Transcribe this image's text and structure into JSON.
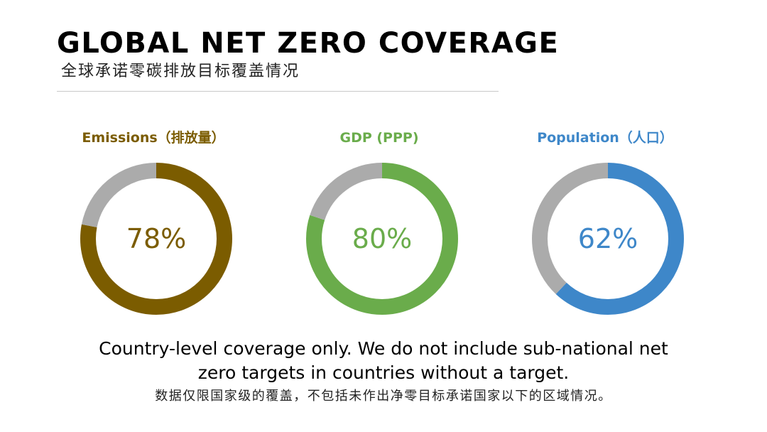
{
  "header": {
    "title": "GLOBAL NET ZERO COVERAGE",
    "subtitle": "全球承诺零碳排放目标覆盖情况"
  },
  "colors": {
    "remainder": "#ababab",
    "emissions": "#7b5c00",
    "gdp": "#6aac4b",
    "population": "#3e87c9"
  },
  "chart_data": [
    {
      "type": "pie",
      "title": "Emissions（排放量）",
      "value_label": "78%",
      "values": [
        78,
        22
      ],
      "colors": [
        "#7b5c00",
        "#ababab"
      ]
    },
    {
      "type": "pie",
      "title": "GDP (PPP)",
      "value_label": "80%",
      "values": [
        80,
        20
      ],
      "colors": [
        "#6aac4b",
        "#ababab"
      ]
    },
    {
      "type": "pie",
      "title": "Population（人口）",
      "value_label": "62%",
      "values": [
        62,
        38
      ],
      "colors": [
        "#3e87c9",
        "#ababab"
      ]
    }
  ],
  "footnote": {
    "en_line1": "Country-level coverage only. We  do not include sub-national net",
    "en_line2": "zero targets in countries without a target.",
    "zh": "数据仅限国家级的覆盖，不包括未作出净零目标承诺国家以下的区域情况。"
  }
}
